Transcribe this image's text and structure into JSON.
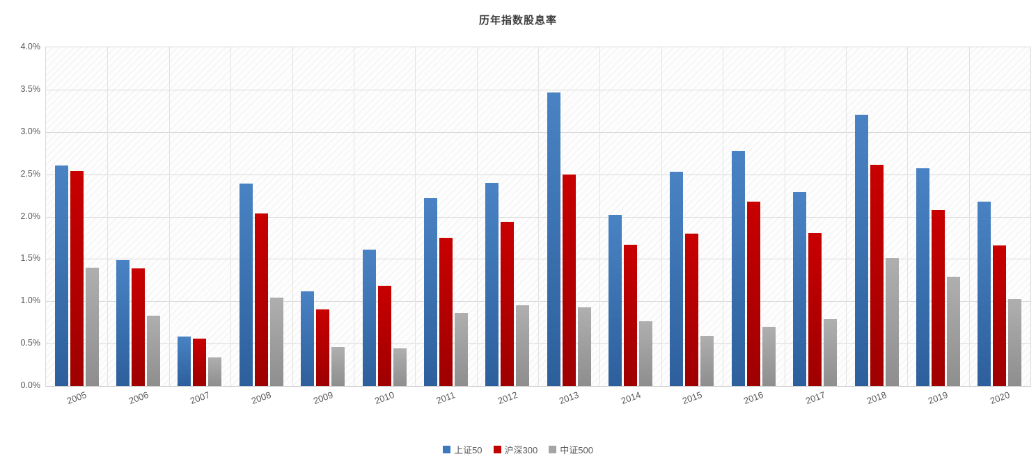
{
  "chart_data": {
    "type": "bar",
    "title": "历年指数股息率",
    "categories": [
      "2005",
      "2006",
      "2007",
      "2008",
      "2009",
      "2010",
      "2011",
      "2012",
      "2013",
      "2014",
      "2015",
      "2016",
      "2017",
      "2018",
      "2019",
      "2020"
    ],
    "series": [
      {
        "name": "上证50",
        "color": "#4983C4",
        "color2": "#2D5F9C",
        "legend_color": "#3E78BC",
        "values": [
          2.6,
          1.49,
          0.58,
          2.39,
          1.12,
          1.61,
          2.22,
          2.4,
          3.47,
          2.02,
          2.53,
          2.78,
          2.29,
          3.2,
          2.57,
          2.18
        ]
      },
      {
        "name": "沪深300",
        "color": "#C80000",
        "color2": "#9E0000",
        "legend_color": "#C00000",
        "values": [
          2.54,
          1.39,
          0.56,
          2.04,
          0.9,
          1.18,
          1.75,
          1.94,
          2.5,
          1.67,
          1.8,
          2.18,
          1.81,
          2.61,
          2.08,
          1.66
        ]
      },
      {
        "name": "中证500",
        "color": "#AFAFAF",
        "color2": "#8E8E8E",
        "legend_color": "#A5A5A5",
        "values": [
          1.4,
          0.83,
          0.34,
          1.04,
          0.46,
          0.44,
          0.86,
          0.95,
          0.93,
          0.76,
          0.59,
          0.7,
          0.79,
          1.51,
          1.29,
          1.03
        ]
      }
    ],
    "ylim": [
      0,
      4.0
    ],
    "ytick_step": 0.5,
    "ytick_labels": [
      "0.0%",
      "0.5%",
      "1.0%",
      "1.5%",
      "2.0%",
      "2.5%",
      "3.0%",
      "3.5%",
      "4.0%"
    ],
    "grid": true,
    "legend_position": "bottom"
  }
}
